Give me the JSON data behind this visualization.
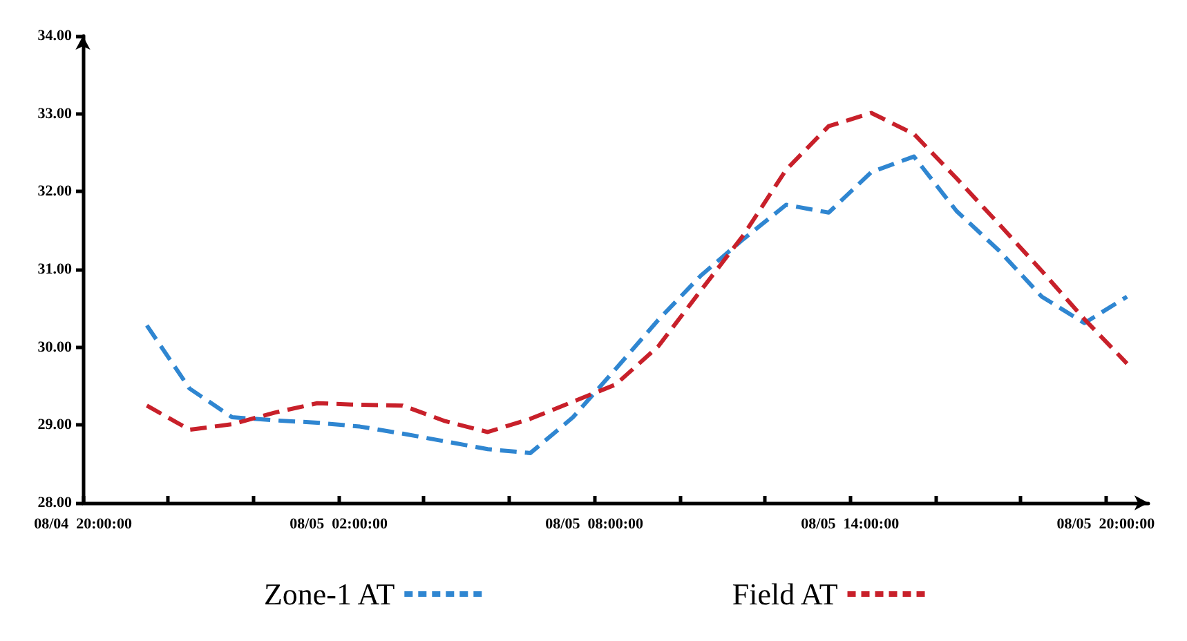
{
  "chart_data": {
    "type": "line",
    "x": [
      "--08-04T21:30",
      "--08-04T22:30",
      "--08-04T23:30",
      "--08-05T00:30",
      "--08-05T01:30",
      "--08-05T02:30",
      "--08-05T03:30",
      "--08-05T04:30",
      "--08-05T05:30",
      "--08-05T06:30",
      "--08-05T07:30",
      "--08-05T08:30",
      "--08-05T09:30",
      "--08-05T10:30",
      "--08-05T11:30",
      "--08-05T12:30",
      "--08-05T13:30",
      "--08-05T14:30",
      "--08-05T15:30",
      "--08-05T16:30",
      "--08-05T17:30",
      "--08-05T18:30",
      "--08-05T19:30",
      "--08-05T20:30"
    ],
    "series": [
      {
        "name": "Zone-1 AT",
        "color": "#2f86d1",
        "values": [
          30.28,
          29.47,
          29.1,
          29.06,
          29.03,
          28.98,
          28.89,
          28.79,
          28.69,
          28.64,
          29.1,
          29.72,
          30.35,
          30.92,
          31.39,
          31.83,
          31.73,
          32.25,
          32.45,
          31.75,
          31.24,
          30.65,
          30.31,
          30.65
        ]
      },
      {
        "name": "Field AT",
        "color": "#c8202a",
        "values": [
          29.25,
          28.94,
          29.01,
          29.16,
          29.28,
          29.26,
          29.25,
          29.05,
          28.91,
          29.08,
          29.3,
          29.52,
          30.01,
          30.73,
          31.44,
          32.28,
          32.84,
          33.01,
          32.74,
          32.17,
          31.58,
          30.98,
          30.36,
          29.79
        ]
      }
    ],
    "xlim": [
      "--08-04T20:00",
      "--08-05T21:00"
    ],
    "xticks": [
      {
        "value": "--08-04T20:00",
        "label": "08/04  20:00:00"
      },
      {
        "value": "--08-04T22:00",
        "label": null
      },
      {
        "value": "--08-05T00:00",
        "label": null
      },
      {
        "value": "--08-05T02:00",
        "label": "08/05  02:00:00"
      },
      {
        "value": "--08-05T04:00",
        "label": null
      },
      {
        "value": "--08-05T06:00",
        "label": null
      },
      {
        "value": "--08-05T08:00",
        "label": "08/05  08:00:00"
      },
      {
        "value": "--08-05T10:00",
        "label": null
      },
      {
        "value": "--08-05T12:00",
        "label": null
      },
      {
        "value": "--08-05T14:00",
        "label": "08/05  14:00:00"
      },
      {
        "value": "--08-05T16:00",
        "label": null
      },
      {
        "value": "--08-05T18:00",
        "label": null
      },
      {
        "value": "--08-05T20:00",
        "label": "08/05  20:00:00"
      }
    ],
    "ylim": [
      28,
      34
    ],
    "yticks": [
      {
        "value": 28,
        "label": "28.00"
      },
      {
        "value": 29,
        "label": "29.00"
      },
      {
        "value": 30,
        "label": "30.00"
      },
      {
        "value": 31,
        "label": "31.00"
      },
      {
        "value": 32,
        "label": "32.00"
      },
      {
        "value": 33,
        "label": "33.00"
      },
      {
        "value": 34,
        "label": "34.00"
      }
    ],
    "grid": false,
    "legend": "bottom",
    "marker": "none",
    "line_style": "dashed"
  }
}
